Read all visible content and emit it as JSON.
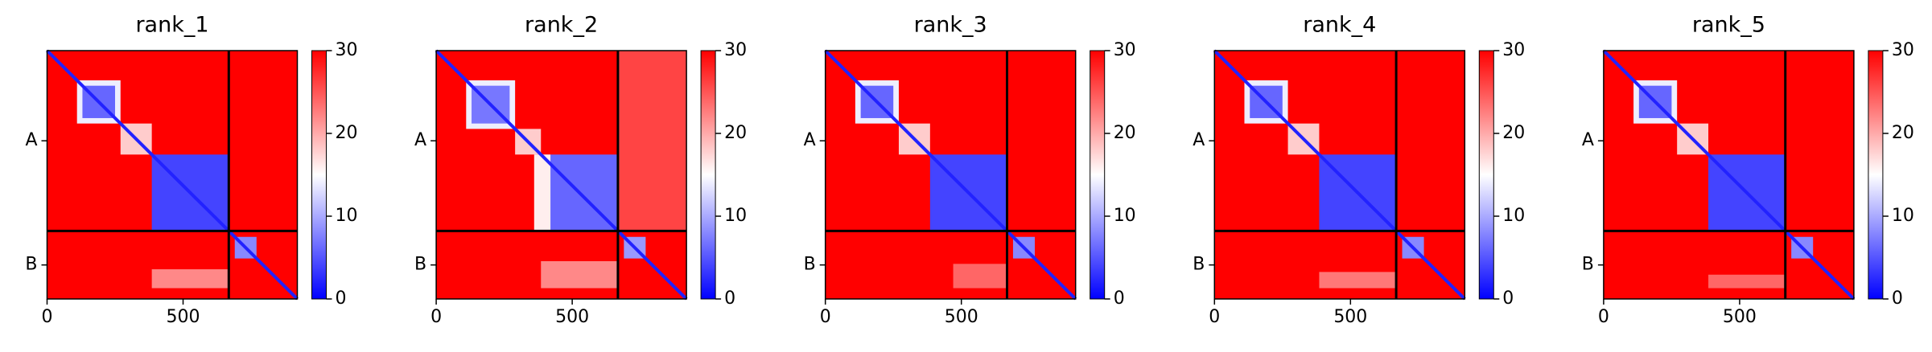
{
  "chart_data": [
    {
      "type": "heatmap",
      "title": "rank_1",
      "colormap": "bwr",
      "clim": [
        0,
        30
      ],
      "cticks": [
        0,
        10,
        20,
        30
      ],
      "xlim": [
        0,
        920
      ],
      "xticks": [
        0,
        500
      ],
      "ylim": [
        920,
        0
      ],
      "yticks": [
        {
          "value": 334,
          "label": "A"
        },
        {
          "value": 794,
          "label": "B"
        }
      ],
      "boundaries": [
        668
      ],
      "diagonal": 2,
      "cells": [
        {
          "x": [
            0,
            920
          ],
          "y": [
            0,
            920
          ],
          "value": 30
        },
        {
          "x": [
            110,
            270
          ],
          "y": [
            110,
            270
          ],
          "value": 14
        },
        {
          "x": [
            130,
            250
          ],
          "y": [
            130,
            250
          ],
          "value": 6
        },
        {
          "x": [
            270,
            385
          ],
          "y": [
            270,
            385
          ],
          "value": 18
        },
        {
          "x": [
            385,
            668
          ],
          "y": [
            385,
            668
          ],
          "value": 4
        },
        {
          "x": [
            385,
            668
          ],
          "y": [
            810,
            880
          ],
          "value": 22
        },
        {
          "x": [
            690,
            770
          ],
          "y": [
            690,
            770
          ],
          "value": 8
        }
      ]
    },
    {
      "type": "heatmap",
      "title": "rank_2",
      "colormap": "bwr",
      "clim": [
        0,
        30
      ],
      "cticks": [
        0,
        10,
        20,
        30
      ],
      "xlim": [
        0,
        920
      ],
      "xticks": [
        0,
        500
      ],
      "ylim": [
        920,
        0
      ],
      "yticks": [
        {
          "value": 334,
          "label": "A"
        },
        {
          "value": 794,
          "label": "B"
        }
      ],
      "boundaries": [
        668
      ],
      "diagonal": 2,
      "cells": [
        {
          "x": [
            0,
            920
          ],
          "y": [
            0,
            920
          ],
          "value": 30
        },
        {
          "x": [
            668,
            920
          ],
          "y": [
            0,
            668
          ],
          "value": 26
        },
        {
          "x": [
            110,
            290
          ],
          "y": [
            110,
            290
          ],
          "value": 14
        },
        {
          "x": [
            130,
            270
          ],
          "y": [
            130,
            270
          ],
          "value": 7
        },
        {
          "x": [
            290,
            385
          ],
          "y": [
            290,
            385
          ],
          "value": 18
        },
        {
          "x": [
            385,
            668
          ],
          "y": [
            385,
            668
          ],
          "value": 6
        },
        {
          "x": [
            360,
            420
          ],
          "y": [
            385,
            668
          ],
          "value": 16
        },
        {
          "x": [
            385,
            668
          ],
          "y": [
            780,
            880
          ],
          "value": 22
        },
        {
          "x": [
            690,
            770
          ],
          "y": [
            690,
            770
          ],
          "value": 9
        }
      ]
    },
    {
      "type": "heatmap",
      "title": "rank_3",
      "colormap": "bwr",
      "clim": [
        0,
        30
      ],
      "cticks": [
        0,
        10,
        20,
        30
      ],
      "xlim": [
        0,
        920
      ],
      "xticks": [
        0,
        500
      ],
      "ylim": [
        920,
        0
      ],
      "yticks": [
        {
          "value": 334,
          "label": "A"
        },
        {
          "value": 794,
          "label": "B"
        }
      ],
      "boundaries": [
        668
      ],
      "diagonal": 2,
      "cells": [
        {
          "x": [
            0,
            920
          ],
          "y": [
            0,
            920
          ],
          "value": 30
        },
        {
          "x": [
            110,
            270
          ],
          "y": [
            110,
            270
          ],
          "value": 14
        },
        {
          "x": [
            130,
            250
          ],
          "y": [
            130,
            250
          ],
          "value": 6
        },
        {
          "x": [
            270,
            385
          ],
          "y": [
            270,
            385
          ],
          "value": 18
        },
        {
          "x": [
            385,
            668
          ],
          "y": [
            385,
            668
          ],
          "value": 4
        },
        {
          "x": [
            470,
            668
          ],
          "y": [
            790,
            880
          ],
          "value": 24
        },
        {
          "x": [
            690,
            770
          ],
          "y": [
            690,
            770
          ],
          "value": 8
        }
      ]
    },
    {
      "type": "heatmap",
      "title": "rank_4",
      "colormap": "bwr",
      "clim": [
        0,
        30
      ],
      "cticks": [
        0,
        10,
        20,
        30
      ],
      "xlim": [
        0,
        920
      ],
      "xticks": [
        0,
        500
      ],
      "ylim": [
        920,
        0
      ],
      "yticks": [
        {
          "value": 334,
          "label": "A"
        },
        {
          "value": 794,
          "label": "B"
        }
      ],
      "boundaries": [
        668
      ],
      "diagonal": 2,
      "cells": [
        {
          "x": [
            0,
            920
          ],
          "y": [
            0,
            920
          ],
          "value": 30
        },
        {
          "x": [
            110,
            270
          ],
          "y": [
            110,
            270
          ],
          "value": 14
        },
        {
          "x": [
            130,
            250
          ],
          "y": [
            130,
            250
          ],
          "value": 6
        },
        {
          "x": [
            270,
            385
          ],
          "y": [
            270,
            385
          ],
          "value": 18
        },
        {
          "x": [
            385,
            668
          ],
          "y": [
            385,
            668
          ],
          "value": 4
        },
        {
          "x": [
            385,
            668
          ],
          "y": [
            820,
            880
          ],
          "value": 23
        },
        {
          "x": [
            690,
            770
          ],
          "y": [
            690,
            770
          ],
          "value": 8
        }
      ]
    },
    {
      "type": "heatmap",
      "title": "rank_5",
      "colormap": "bwr",
      "clim": [
        0,
        30
      ],
      "cticks": [
        0,
        10,
        20,
        30
      ],
      "xlim": [
        0,
        920
      ],
      "xticks": [
        0,
        500
      ],
      "ylim": [
        920,
        0
      ],
      "yticks": [
        {
          "value": 334,
          "label": "A"
        },
        {
          "value": 794,
          "label": "B"
        }
      ],
      "boundaries": [
        668
      ],
      "diagonal": 2,
      "cells": [
        {
          "x": [
            0,
            920
          ],
          "y": [
            0,
            920
          ],
          "value": 30
        },
        {
          "x": [
            110,
            270
          ],
          "y": [
            110,
            270
          ],
          "value": 14
        },
        {
          "x": [
            130,
            250
          ],
          "y": [
            130,
            250
          ],
          "value": 6
        },
        {
          "x": [
            270,
            385
          ],
          "y": [
            270,
            385
          ],
          "value": 18
        },
        {
          "x": [
            385,
            668
          ],
          "y": [
            385,
            668
          ],
          "value": 4
        },
        {
          "x": [
            385,
            668
          ],
          "y": [
            830,
            880
          ],
          "value": 24
        },
        {
          "x": [
            690,
            770
          ],
          "y": [
            690,
            770
          ],
          "value": 8
        }
      ]
    }
  ]
}
